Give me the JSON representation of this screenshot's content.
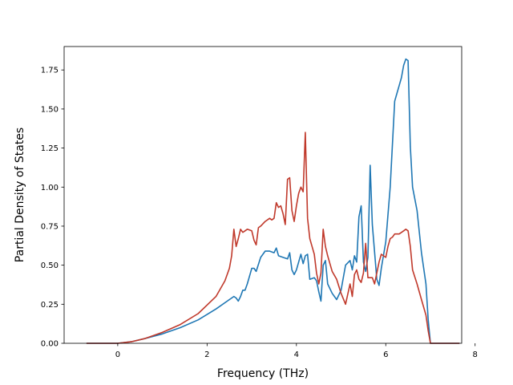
{
  "chart_data": {
    "type": "line",
    "xlabel": "Frequency (THz)",
    "ylabel": "Partial Density of States",
    "xlim": [
      -1.2,
      7.7
    ],
    "ylim": [
      0,
      1.9
    ],
    "xticks": [
      0,
      2,
      4,
      6,
      8
    ],
    "xtick_labels": [
      "0",
      "2",
      "4",
      "6",
      "8"
    ],
    "yticks": [
      0,
      0.25,
      0.5,
      0.75,
      1.0,
      1.25,
      1.5,
      1.75
    ],
    "ytick_labels": [
      "0.00",
      "0.25",
      "0.50",
      "0.75",
      "1.00",
      "1.25",
      "1.50",
      "1.75"
    ],
    "grid": false,
    "series": [
      {
        "color": "#1f77b4",
        "x": [
          -0.7,
          0.0,
          0.3,
          0.6,
          1.0,
          1.4,
          1.8,
          2.2,
          2.5,
          2.6,
          2.65,
          2.7,
          2.75,
          2.8,
          2.85,
          2.9,
          2.95,
          3.0,
          3.05,
          3.1,
          3.2,
          3.3,
          3.4,
          3.5,
          3.55,
          3.6,
          3.7,
          3.8,
          3.85,
          3.9,
          3.95,
          4.0,
          4.05,
          4.1,
          4.15,
          4.2,
          4.25,
          4.3,
          4.4,
          4.45,
          4.5,
          4.55,
          4.6,
          4.65,
          4.7,
          4.8,
          4.9,
          5.0,
          5.1,
          5.2,
          5.25,
          5.3,
          5.35,
          5.4,
          5.45,
          5.5,
          5.55,
          5.6,
          5.65,
          5.7,
          5.8,
          5.85,
          5.9,
          6.0,
          6.1,
          6.2,
          6.25,
          6.3,
          6.35,
          6.4,
          6.45,
          6.5,
          6.55,
          6.6,
          6.7,
          6.8,
          6.9,
          6.95,
          7.0,
          7.65
        ],
        "y": [
          0.0,
          0.0,
          0.01,
          0.03,
          0.06,
          0.1,
          0.15,
          0.22,
          0.28,
          0.3,
          0.29,
          0.27,
          0.3,
          0.34,
          0.34,
          0.38,
          0.43,
          0.48,
          0.48,
          0.46,
          0.55,
          0.59,
          0.59,
          0.58,
          0.61,
          0.56,
          0.55,
          0.54,
          0.58,
          0.47,
          0.44,
          0.47,
          0.52,
          0.57,
          0.51,
          0.56,
          0.57,
          0.41,
          0.42,
          0.4,
          0.33,
          0.27,
          0.5,
          0.53,
          0.38,
          0.32,
          0.28,
          0.34,
          0.5,
          0.53,
          0.47,
          0.56,
          0.52,
          0.81,
          0.88,
          0.52,
          0.46,
          0.55,
          1.14,
          0.76,
          0.41,
          0.37,
          0.48,
          0.65,
          1.0,
          1.55,
          1.6,
          1.65,
          1.7,
          1.78,
          1.82,
          1.81,
          1.26,
          1.0,
          0.85,
          0.58,
          0.38,
          0.15,
          0.0,
          0.0
        ]
      },
      {
        "color": "#c0392b",
        "x": [
          -0.7,
          0.0,
          0.3,
          0.6,
          1.0,
          1.4,
          1.8,
          2.2,
          2.4,
          2.5,
          2.55,
          2.6,
          2.65,
          2.7,
          2.75,
          2.8,
          2.85,
          2.9,
          3.0,
          3.05,
          3.1,
          3.15,
          3.2,
          3.3,
          3.4,
          3.45,
          3.5,
          3.55,
          3.6,
          3.65,
          3.7,
          3.75,
          3.8,
          3.85,
          3.9,
          3.95,
          4.0,
          4.05,
          4.1,
          4.15,
          4.2,
          4.25,
          4.3,
          4.35,
          4.4,
          4.45,
          4.5,
          4.55,
          4.6,
          4.65,
          4.7,
          4.75,
          4.8,
          4.9,
          5.0,
          5.1,
          5.2,
          5.25,
          5.3,
          5.35,
          5.4,
          5.45,
          5.5,
          5.55,
          5.6,
          5.65,
          5.7,
          5.75,
          5.8,
          5.85,
          5.9,
          6.0,
          6.05,
          6.1,
          6.15,
          6.2,
          6.3,
          6.4,
          6.45,
          6.5,
          6.55,
          6.6,
          6.7,
          6.8,
          6.9,
          6.95,
          7.0,
          7.65
        ],
        "y": [
          0.0,
          0.0,
          0.01,
          0.03,
          0.07,
          0.12,
          0.19,
          0.3,
          0.4,
          0.48,
          0.56,
          0.73,
          0.62,
          0.67,
          0.73,
          0.71,
          0.72,
          0.73,
          0.72,
          0.66,
          0.63,
          0.74,
          0.75,
          0.78,
          0.8,
          0.79,
          0.8,
          0.9,
          0.87,
          0.88,
          0.83,
          0.76,
          1.05,
          1.06,
          0.85,
          0.78,
          0.88,
          0.96,
          1.0,
          0.97,
          1.35,
          0.8,
          0.67,
          0.62,
          0.57,
          0.45,
          0.38,
          0.45,
          0.73,
          0.62,
          0.56,
          0.51,
          0.46,
          0.41,
          0.32,
          0.25,
          0.38,
          0.3,
          0.44,
          0.47,
          0.41,
          0.39,
          0.45,
          0.64,
          0.42,
          0.42,
          0.42,
          0.38,
          0.45,
          0.52,
          0.57,
          0.55,
          0.62,
          0.67,
          0.68,
          0.7,
          0.7,
          0.72,
          0.73,
          0.72,
          0.62,
          0.47,
          0.38,
          0.28,
          0.18,
          0.08,
          0.0,
          0.0
        ]
      }
    ]
  }
}
